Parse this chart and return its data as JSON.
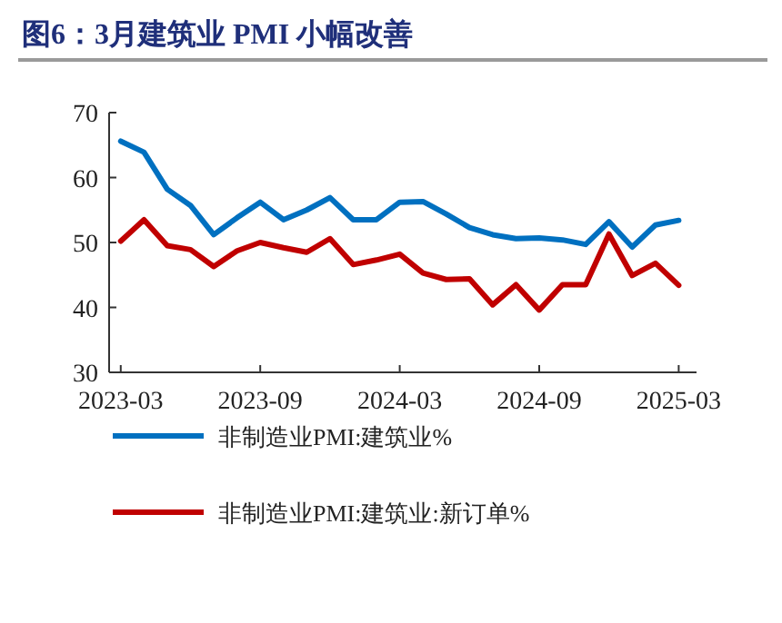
{
  "chart_data": {
    "type": "line",
    "title": "图6：3月建筑业 PMI 小幅改善",
    "x": [
      "2023-03",
      "2023-04",
      "2023-05",
      "2023-06",
      "2023-07",
      "2023-08",
      "2023-09",
      "2023-10",
      "2023-11",
      "2023-12",
      "2024-01",
      "2024-02",
      "2024-03",
      "2024-04",
      "2024-05",
      "2024-06",
      "2024-07",
      "2024-08",
      "2024-09",
      "2024-10",
      "2024-11",
      "2024-12",
      "2025-01",
      "2025-02",
      "2025-03"
    ],
    "series": [
      {
        "name": "非制造业PMI:建筑业%",
        "color": "#0070c0",
        "values": [
          65.6,
          63.9,
          58.2,
          55.7,
          51.2,
          53.8,
          56.2,
          53.5,
          55.0,
          56.9,
          53.5,
          53.5,
          56.2,
          56.3,
          54.4,
          52.3,
          51.2,
          50.6,
          50.7,
          50.4,
          49.7,
          53.2,
          49.3,
          52.7,
          53.4
        ]
      },
      {
        "name": "非制造业PMI:建筑业:新订单%",
        "color": "#c00000",
        "values": [
          50.2,
          53.5,
          49.5,
          48.9,
          46.3,
          48.7,
          50.0,
          49.2,
          48.5,
          50.6,
          46.6,
          47.3,
          48.2,
          45.3,
          44.3,
          44.4,
          40.4,
          43.5,
          39.6,
          43.5,
          43.5,
          51.3,
          44.9,
          46.8,
          43.4
        ]
      }
    ],
    "xlim": [
      "2023-02-16",
      "2025-03-24"
    ],
    "xticks": [
      "2023-03",
      "2023-09",
      "2024-03",
      "2024-09",
      "2025-03"
    ],
    "ylim": [
      30,
      70
    ],
    "yticks": [
      30,
      40,
      50,
      60,
      70
    ],
    "grid": false,
    "legend": "bottom",
    "line_style": "solid",
    "marker": "none"
  }
}
